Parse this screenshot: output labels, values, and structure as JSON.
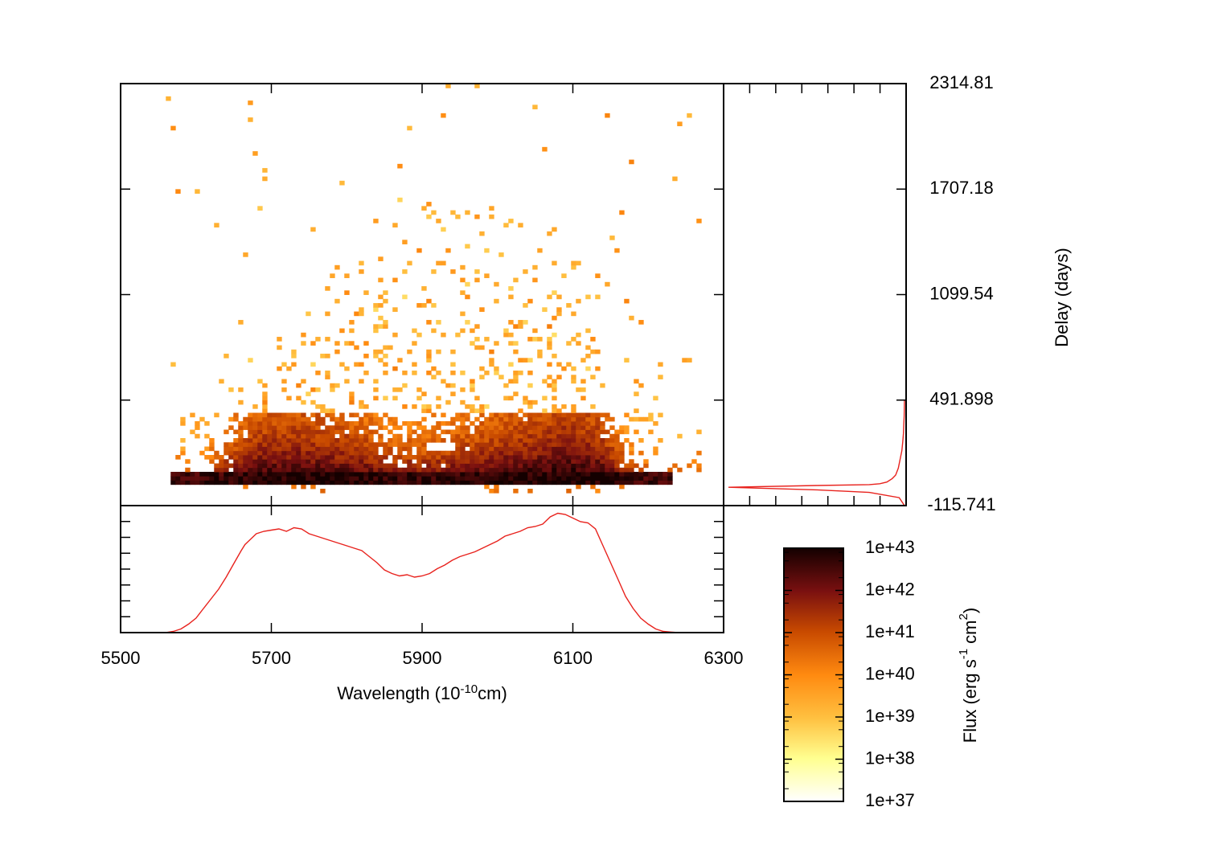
{
  "chart_data": [
    {
      "type": "heatmap",
      "panel": "main",
      "title": "",
      "xlabel": "",
      "ylabel": "Delay (days)",
      "xlim": [
        5500,
        6300
      ],
      "ylim": [
        -115.741,
        2314.81
      ],
      "x_ticks": [
        5500,
        5700,
        5900,
        6100,
        6300
      ],
      "y_ticks": [
        "-115.741",
        "491.898",
        "1099.54",
        "1707.18",
        "2314.81"
      ],
      "y_tick_values": [
        -115.741,
        491.898,
        1099.54,
        1707.18,
        2314.81
      ],
      "color_scale": "log",
      "colormap": "afmhot-reversed",
      "x_bin_width": 6.4,
      "y_bin_width": 24.3,
      "x_extent": [
        5560,
        6270
      ],
      "envelope": {
        "x": [
          5560,
          5600,
          5640,
          5680,
          5720,
          5760,
          5800,
          5840,
          5880,
          5920,
          5960,
          6000,
          6040,
          6080,
          6120,
          6160,
          6200,
          6240,
          6270
        ],
        "delay_max": [
          90,
          220,
          550,
          820,
          1080,
          1250,
          1450,
          1600,
          1700,
          1750,
          1750,
          1700,
          1650,
          1550,
          1350,
          1150,
          850,
          650,
          400
        ]
      },
      "notes_visible": "dense core near delay 0, sparse scatter up to ~2300 days"
    },
    {
      "type": "line",
      "panel": "bottom",
      "title": "",
      "xlabel": "Wavelength (10-10cm)",
      "xlabel_parts": {
        "base": "Wavelength (10",
        "sup": "-10",
        "tail": "cm)"
      },
      "ylabel": "",
      "xlim": [
        5500,
        6300
      ],
      "x_ticks": [
        5500,
        5700,
        5900,
        6100,
        6300
      ],
      "color": "#e8221d",
      "x": [
        5560,
        5570,
        5580,
        5590,
        5600,
        5610,
        5620,
        5630,
        5640,
        5650,
        5660,
        5665,
        5670,
        5680,
        5690,
        5700,
        5710,
        5720,
        5730,
        5740,
        5750,
        5760,
        5770,
        5780,
        5790,
        5800,
        5810,
        5820,
        5830,
        5840,
        5850,
        5860,
        5870,
        5880,
        5890,
        5900,
        5910,
        5920,
        5930,
        5940,
        5950,
        5960,
        5970,
        5980,
        5990,
        6000,
        6010,
        6020,
        6030,
        6040,
        6050,
        6060,
        6070,
        6080,
        6090,
        6100,
        6110,
        6120,
        6130,
        6140,
        6150,
        6160,
        6170,
        6180,
        6190,
        6200,
        6210,
        6220,
        6230,
        6240,
        6250,
        6260,
        6270
      ],
      "y": [
        0.0,
        0.01,
        0.03,
        0.07,
        0.12,
        0.2,
        0.28,
        0.36,
        0.46,
        0.57,
        0.68,
        0.73,
        0.76,
        0.82,
        0.84,
        0.85,
        0.86,
        0.84,
        0.87,
        0.86,
        0.82,
        0.8,
        0.78,
        0.76,
        0.74,
        0.72,
        0.7,
        0.68,
        0.63,
        0.58,
        0.52,
        0.49,
        0.47,
        0.48,
        0.46,
        0.47,
        0.49,
        0.53,
        0.56,
        0.6,
        0.63,
        0.65,
        0.67,
        0.7,
        0.73,
        0.76,
        0.8,
        0.82,
        0.84,
        0.87,
        0.88,
        0.9,
        0.96,
        0.99,
        0.98,
        0.95,
        0.92,
        0.91,
        0.86,
        0.72,
        0.58,
        0.44,
        0.3,
        0.2,
        0.12,
        0.07,
        0.03,
        0.01,
        0.005,
        0.0,
        0.0,
        0.0,
        0.0
      ]
    },
    {
      "type": "line",
      "panel": "right",
      "title": "",
      "xlabel": "",
      "ylabel": "",
      "ylim": [
        -115.741,
        2314.81
      ],
      "color": "#e8221d",
      "delay": [
        -115.741,
        -70,
        -40,
        -25,
        -10,
        0,
        5,
        10,
        20,
        40,
        60,
        100,
        150,
        200,
        250,
        300,
        350,
        400,
        450,
        491.898
      ],
      "flux": [
        1.0,
        0.97,
        0.8,
        0.5,
        0.0,
        0.5,
        0.8,
        0.86,
        0.9,
        0.93,
        0.95,
        0.965,
        0.975,
        0.985,
        0.99,
        0.994,
        0.996,
        0.998,
        0.999,
        1.0
      ]
    },
    {
      "type": "colorbar",
      "label": "Flux (erg s-1 cm2)",
      "label_parts": {
        "a": "Flux (erg s",
        "sup1": "-1",
        "b": " cm",
        "sup2": "2",
        "c": ")"
      },
      "ticks": [
        "1e+37",
        "1e+38",
        "1e+39",
        "1e+40",
        "1e+41",
        "1e+42",
        "1e+43"
      ],
      "range": [
        1e+37,
        1e+43
      ],
      "colors": [
        "#ffffff",
        "#ffff80",
        "#ffc040",
        "#ff8000",
        "#c04000",
        "#801010",
        "#000000"
      ]
    }
  ]
}
